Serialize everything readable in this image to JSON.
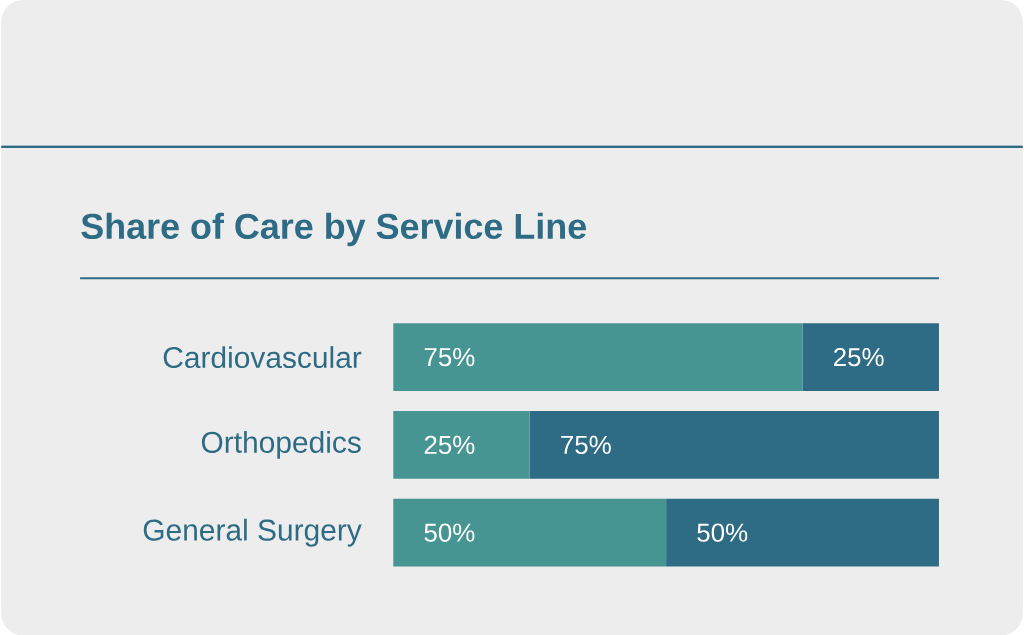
{
  "chart_data": {
    "type": "bar",
    "title": "Share of Care by Service Line",
    "orientation": "horizontal",
    "stacked": true,
    "categories": [
      "Cardiovascular",
      "Orthopedics",
      "General Surgery"
    ],
    "series": [
      {
        "color": "#479592",
        "values": [
          75,
          25,
          50
        ],
        "value_labels": [
          "75%",
          "25%",
          "50%"
        ]
      },
      {
        "color": "#2e6b85",
        "values": [
          25,
          75,
          50
        ],
        "value_labels": [
          "25%",
          "75%",
          "50%"
        ]
      }
    ]
  }
}
